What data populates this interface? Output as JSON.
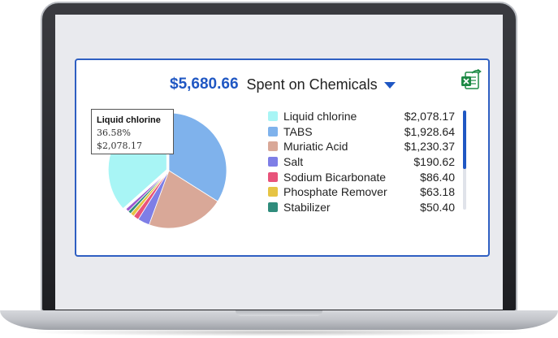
{
  "header": {
    "total": "$5,680.66",
    "label": "Spent on Chemicals"
  },
  "icons": {
    "export": "excel-export-icon",
    "dropdown": "caret-down-icon"
  },
  "tooltip": {
    "name": "Liquid chlorine",
    "percent": "36.58%",
    "amount": "$2,078.17"
  },
  "colors": {
    "accent": "#1f57c3",
    "border": "#2f5fc2"
  },
  "chart_data": {
    "type": "pie",
    "slices": [
      {
        "label": "Liquid chlorine",
        "value": 2078.17,
        "display": "$2,078.17",
        "color": "#a8f5f5"
      },
      {
        "label": "TABS",
        "value": 1928.64,
        "display": "$1,928.64",
        "color": "#7fb2ec"
      },
      {
        "label": "Muriatic Acid",
        "value": 1230.37,
        "display": "$1,230.37",
        "color": "#d9a898"
      },
      {
        "label": "Salt",
        "value": 190.62,
        "display": "$190.62",
        "color": "#7e7ee6"
      },
      {
        "label": "Sodium Bicarbonate",
        "value": 86.4,
        "display": "$86.40",
        "color": "#e8537a"
      },
      {
        "label": "Phosphate Remover",
        "value": 63.18,
        "display": "$63.18",
        "color": "#e6c444"
      },
      {
        "label": "Stabilizer",
        "value": 50.4,
        "display": "$50.40",
        "color": "#2f8c7c"
      },
      {
        "value": 53.0,
        "color": "#9b59d0"
      }
    ],
    "highlighted": "Liquid chlorine",
    "legend_placement": "right"
  }
}
